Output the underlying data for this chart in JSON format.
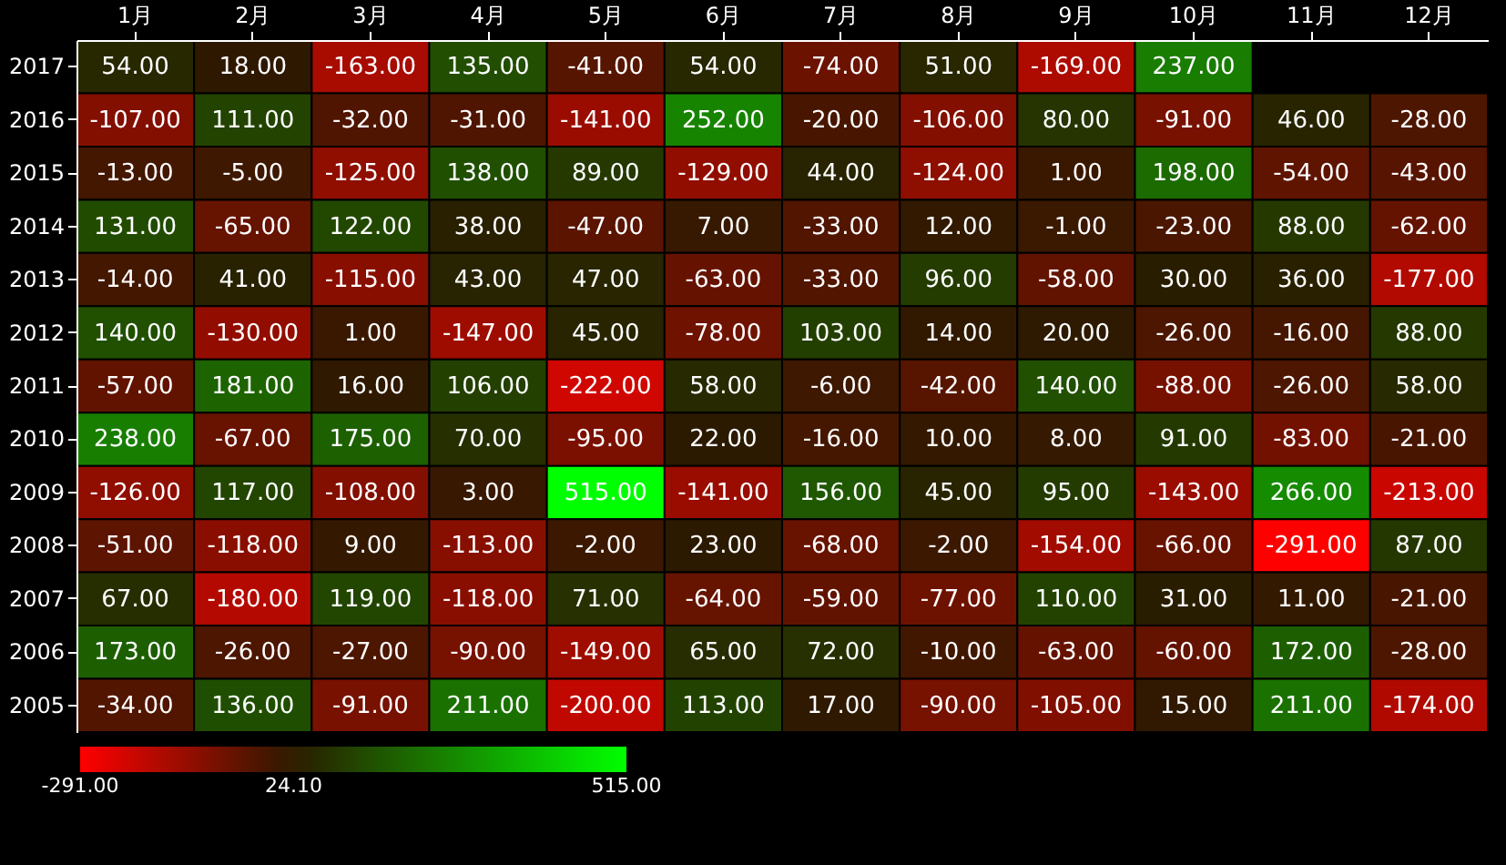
{
  "chart_data": {
    "type": "heatmap",
    "categories": [
      "1月",
      "2月",
      "3月",
      "4月",
      "5月",
      "6月",
      "7月",
      "8月",
      "9月",
      "10月",
      "11月",
      "12月"
    ],
    "y_categories": [
      "2017",
      "2016",
      "2015",
      "2014",
      "2013",
      "2012",
      "2011",
      "2010",
      "2009",
      "2008",
      "2007",
      "2006",
      "2005"
    ],
    "cells": [
      [
        54,
        18,
        -163,
        135,
        -41,
        54,
        -74,
        51,
        -169,
        237,
        null,
        null
      ],
      [
        -107,
        111,
        -32,
        -31,
        -141,
        252,
        -20,
        -106,
        80,
        -91,
        46,
        -28
      ],
      [
        -13,
        -5,
        -125,
        138,
        89,
        -129,
        44,
        -124,
        1,
        198,
        -54,
        -43
      ],
      [
        131,
        -65,
        122,
        38,
        -47,
        7,
        -33,
        12,
        -1,
        -23,
        88,
        -62
      ],
      [
        -14,
        41,
        -115,
        43,
        47,
        -63,
        -33,
        96,
        -58,
        30,
        36,
        -177
      ],
      [
        140,
        -130,
        1,
        -147,
        45,
        -78,
        103,
        14,
        20,
        -26,
        -16,
        88
      ],
      [
        -57,
        181,
        16,
        106,
        -222,
        58,
        -6,
        -42,
        140,
        -88,
        -26,
        58
      ],
      [
        238,
        -67,
        175,
        70,
        -95,
        22,
        -16,
        10,
        8,
        91,
        -83,
        -21
      ],
      [
        -126,
        117,
        -108,
        3,
        515,
        -141,
        156,
        45,
        95,
        -143,
        266,
        -213
      ],
      [
        -51,
        -118,
        9,
        -113,
        -2,
        23,
        -68,
        -2,
        -154,
        -66,
        -291,
        87
      ],
      [
        67,
        -180,
        119,
        -118,
        71,
        -64,
        -59,
        -77,
        110,
        31,
        11,
        -21
      ],
      [
        173,
        -26,
        -27,
        -90,
        -149,
        65,
        72,
        -10,
        -63,
        -60,
        172,
        -28
      ],
      [
        -34,
        136,
        -91,
        211,
        -200,
        113,
        17,
        -90,
        -105,
        15,
        211,
        -174
      ]
    ],
    "cell_labels": [
      [
        "54.00",
        "18.00",
        "-163.00",
        "135.00",
        "-41.00",
        "54.00",
        "-74.00",
        "51.00",
        "-169.00",
        "237.00",
        null,
        null
      ],
      [
        "-107.00",
        "111.00",
        "-32.00",
        "-31.00",
        "-141.00",
        "252.00",
        "-20.00",
        "-106.00",
        "80.00",
        "-91.00",
        "46.00",
        "-28.00"
      ],
      [
        "-13.00",
        "-5.00",
        "-125.00",
        "138.00",
        "89.00",
        "-129.00",
        "44.00",
        "-124.00",
        "1.00",
        "198.00",
        "-54.00",
        "-43.00"
      ],
      [
        "131.00",
        "-65.00",
        "122.00",
        "38.00",
        "-47.00",
        "7.00",
        "-33.00",
        "12.00",
        "-1.00",
        "-23.00",
        "88.00",
        "-62.00"
      ],
      [
        "-14.00",
        "41.00",
        "-115.00",
        "43.00",
        "47.00",
        "-63.00",
        "-33.00",
        "96.00",
        "-58.00",
        "30.00",
        "36.00",
        "-177.00"
      ],
      [
        "140.00",
        "-130.00",
        "1.00",
        "-147.00",
        "45.00",
        "-78.00",
        "103.00",
        "14.00",
        "20.00",
        "-26.00",
        "-16.00",
        "88.00"
      ],
      [
        "-57.00",
        "181.00",
        "16.00",
        "106.00",
        "-222.00",
        "58.00",
        "-6.00",
        "-42.00",
        "140.00",
        "-88.00",
        "-26.00",
        "58.00"
      ],
      [
        "238.00",
        "-67.00",
        "175.00",
        "70.00",
        "-95.00",
        "22.00",
        "-16.00",
        "10.00",
        "8.00",
        "91.00",
        "-83.00",
        "-21.00"
      ],
      [
        "-126.00",
        "117.00",
        "-108.00",
        "3.00",
        "515.00",
        "-141.00",
        "156.00",
        "45.00",
        "95.00",
        "-143.00",
        "266.00",
        "-213.00"
      ],
      [
        "-51.00",
        "-118.00",
        "9.00",
        "-113.00",
        "-2.00",
        "23.00",
        "-68.00",
        "-2.00",
        "-154.00",
        "-66.00",
        "-291.00",
        "87.00"
      ],
      [
        "67.00",
        "-180.00",
        "119.00",
        "-118.00",
        "71.00",
        "-64.00",
        "-59.00",
        "-77.00",
        "110.00",
        "31.00",
        "11.00",
        "-21.00"
      ],
      [
        "173.00",
        "-26.00",
        "-27.00",
        "-90.00",
        "-149.00",
        "65.00",
        "72.00",
        "-10.00",
        "-63.00",
        "-60.00",
        "172.00",
        "-28.00"
      ],
      [
        "-34.00",
        "136.00",
        "-91.00",
        "211.00",
        "-200.00",
        "113.00",
        "17.00",
        "-90.00",
        "-105.00",
        "15.00",
        "211.00",
        "-174.00"
      ]
    ],
    "clim": [
      -291,
      515
    ],
    "cticks": [
      {
        "value": -291,
        "label": "-291.00"
      },
      {
        "value": 24.1,
        "label": "24.10"
      },
      {
        "value": 515,
        "label": "515.00"
      }
    ],
    "colors": [
      "#ff0000",
      "#2a1a00",
      "#00ff00"
    ]
  }
}
